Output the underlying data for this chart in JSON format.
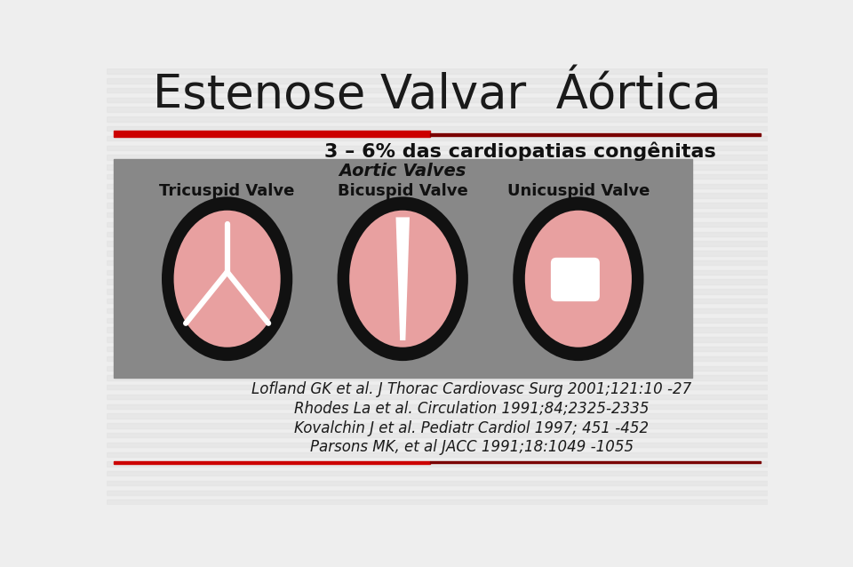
{
  "title": "Estenose Valvar  Áórtica",
  "subtitle": "3 – 6% das cardiopatias congênitas",
  "bg_color": "#eeeeee",
  "red_line_color": "#cc0000",
  "dark_red_color": "#7a0000",
  "gray_box_color": "#888888",
  "valve_fill": "#e8a0a0",
  "valve_outer": "#111111",
  "white_color": "#ffffff",
  "aortic_title": "Aortic Valves",
  "valve_labels": [
    "Tricuspid Valve",
    "Bicuspid Valve",
    "Unicuspid Valve"
  ],
  "references": [
    "Lofland GK et al. J Thorac Cardiovasc Surg 2001;121:10 -27",
    "Rhodes La et al. Circulation 1991;84;2325-2335",
    "Kovalchin J et al. Pediatr Cardiol 1997; 451 -452",
    "Parsons MK, et al JACC 1991;18:1049 -1055"
  ],
  "ref_line_color": "#8b0000",
  "stripe_color": "#e2e2e2",
  "title_fontsize": 38,
  "subtitle_fontsize": 16,
  "label_fontsize": 13,
  "ref_fontsize": 12
}
